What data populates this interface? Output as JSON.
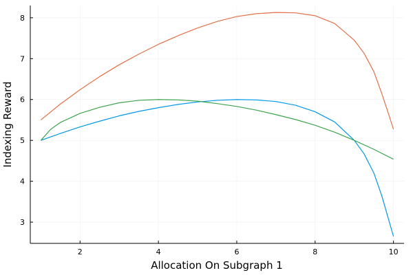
{
  "chart_data": {
    "type": "line",
    "title": "",
    "xlabel": "Allocation On Subgraph 1",
    "ylabel": "Indexing Reward",
    "xlim": [
      0.73,
      10.27
    ],
    "ylim": [
      2.48,
      8.3
    ],
    "xticks": [
      2,
      4,
      6,
      8,
      10
    ],
    "yticks": [
      3,
      4,
      5,
      6,
      7,
      8
    ],
    "grid": true,
    "legend": "none",
    "series": [
      {
        "color": "#0097E8",
        "x": [
          1,
          1.5,
          2,
          2.5,
          3,
          3.5,
          4,
          4.5,
          5,
          5.5,
          6,
          6.5,
          7,
          7.5,
          8,
          8.5,
          9,
          9.25,
          9.5,
          9.7,
          9.85,
          10
        ],
        "y": [
          5.0,
          5.17,
          5.33,
          5.47,
          5.6,
          5.71,
          5.8,
          5.88,
          5.94,
          5.98,
          6.0,
          5.99,
          5.95,
          5.86,
          5.7,
          5.45,
          5.0,
          4.67,
          4.2,
          3.65,
          3.15,
          2.65
        ]
      },
      {
        "color": "#E26F46",
        "x": [
          1,
          1.5,
          2,
          2.5,
          3,
          3.5,
          4,
          4.5,
          5,
          5.5,
          6,
          6.5,
          7,
          7.5,
          8,
          8.5,
          9,
          9.25,
          9.5,
          9.7,
          9.85,
          10
        ],
        "y": [
          5.5,
          5.89,
          6.24,
          6.56,
          6.85,
          7.11,
          7.35,
          7.56,
          7.75,
          7.91,
          8.03,
          8.1,
          8.13,
          8.12,
          8.05,
          7.86,
          7.45,
          7.13,
          6.68,
          6.15,
          5.72,
          5.27
        ]
      },
      {
        "color": "#3DA44D",
        "x": [
          1,
          1.25,
          1.5,
          2,
          2.5,
          3,
          3.5,
          4,
          4.5,
          5,
          5.5,
          6,
          6.5,
          7,
          7.5,
          8,
          8.5,
          9,
          9.5,
          10
        ],
        "y": [
          5.0,
          5.27,
          5.44,
          5.66,
          5.81,
          5.92,
          5.98,
          6.0,
          5.99,
          5.96,
          5.9,
          5.83,
          5.74,
          5.63,
          5.51,
          5.37,
          5.2,
          5.0,
          4.78,
          4.54
        ]
      }
    ]
  }
}
